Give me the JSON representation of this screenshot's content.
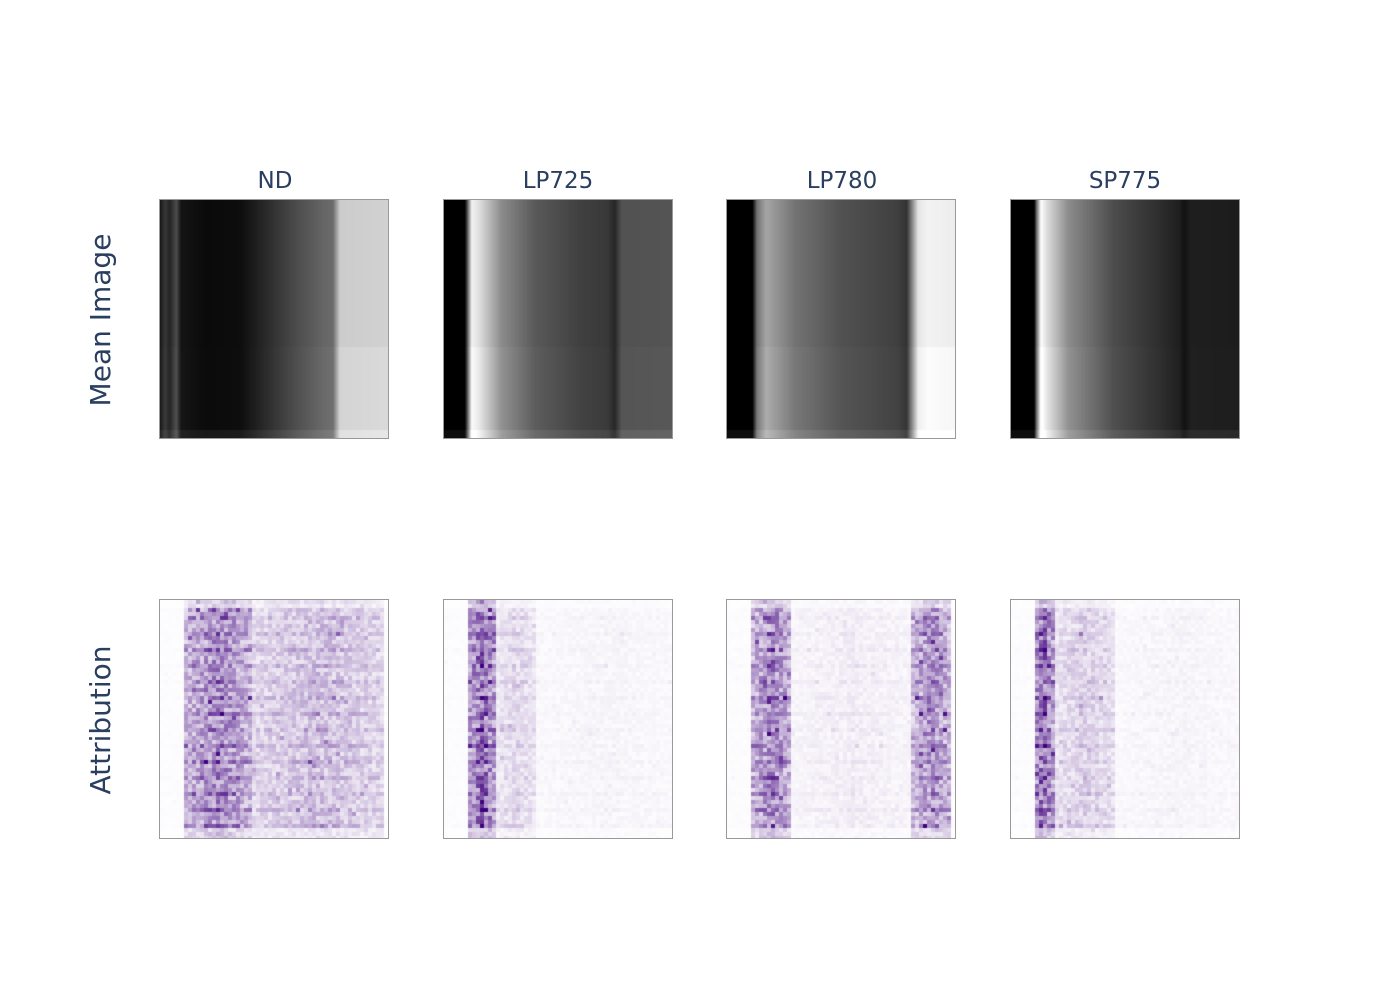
{
  "chart_data": {
    "type": "heatmap",
    "columns": [
      "ND",
      "LP725",
      "LP780",
      "SP775"
    ],
    "rows": [
      "Mean Image",
      "Attribution"
    ],
    "colorscales": {
      "mean_image": [
        "#000000",
        "#ffffff"
      ],
      "attribution": [
        "#ffffff",
        "#3f007d"
      ]
    },
    "mean_image_profiles": {
      "ND": [
        [
          0.0,
          0.1
        ],
        [
          0.02,
          0.22
        ],
        [
          0.04,
          0.14
        ],
        [
          0.07,
          0.3
        ],
        [
          0.09,
          0.08
        ],
        [
          0.2,
          0.04
        ],
        [
          0.35,
          0.05
        ],
        [
          0.45,
          0.15
        ],
        [
          0.6,
          0.3
        ],
        [
          0.72,
          0.4
        ],
        [
          0.76,
          0.42
        ],
        [
          0.79,
          0.8
        ],
        [
          1.0,
          0.82
        ]
      ],
      "LP725": [
        [
          0.0,
          0.0
        ],
        [
          0.09,
          0.0
        ],
        [
          0.1,
          0.3
        ],
        [
          0.12,
          0.95
        ],
        [
          0.15,
          0.88
        ],
        [
          0.25,
          0.55
        ],
        [
          0.4,
          0.35
        ],
        [
          0.6,
          0.25
        ],
        [
          0.72,
          0.22
        ],
        [
          0.75,
          0.15
        ],
        [
          0.78,
          0.32
        ],
        [
          1.0,
          0.33
        ]
      ],
      "LP780": [
        [
          0.0,
          0.0
        ],
        [
          0.11,
          0.0
        ],
        [
          0.13,
          0.45
        ],
        [
          0.17,
          0.65
        ],
        [
          0.3,
          0.45
        ],
        [
          0.5,
          0.32
        ],
        [
          0.75,
          0.25
        ],
        [
          0.79,
          0.2
        ],
        [
          0.84,
          0.9
        ],
        [
          0.88,
          0.95
        ],
        [
          1.0,
          0.93
        ]
      ],
      "SP775": [
        [
          0.0,
          0.0
        ],
        [
          0.1,
          0.0
        ],
        [
          0.11,
          0.4
        ],
        [
          0.13,
          1.0
        ],
        [
          0.16,
          0.85
        ],
        [
          0.25,
          0.55
        ],
        [
          0.45,
          0.3
        ],
        [
          0.65,
          0.18
        ],
        [
          0.74,
          0.12
        ],
        [
          0.76,
          0.07
        ],
        [
          0.79,
          0.12
        ],
        [
          1.0,
          0.11
        ]
      ]
    },
    "attribution_bands": {
      "ND": [
        {
          "x0": 0.1,
          "x1": 0.4,
          "peak": 0.55
        },
        {
          "x0": 0.4,
          "x1": 0.97,
          "peak": 0.3
        }
      ],
      "LP725": [
        {
          "x0": 0.1,
          "x1": 0.22,
          "peak": 0.7
        },
        {
          "x0": 0.22,
          "x1": 0.4,
          "peak": 0.18
        },
        {
          "x0": 0.4,
          "x1": 1.0,
          "peak": 0.05
        }
      ],
      "LP780": [
        {
          "x0": 0.1,
          "x1": 0.28,
          "peak": 0.55
        },
        {
          "x0": 0.28,
          "x1": 0.8,
          "peak": 0.08
        },
        {
          "x0": 0.8,
          "x1": 0.98,
          "peak": 0.5
        }
      ],
      "SP775": [
        {
          "x0": 0.09,
          "x1": 0.18,
          "peak": 0.7
        },
        {
          "x0": 0.18,
          "x1": 0.45,
          "peak": 0.22
        },
        {
          "x0": 0.45,
          "x1": 1.0,
          "peak": 0.05
        }
      ]
    }
  }
}
